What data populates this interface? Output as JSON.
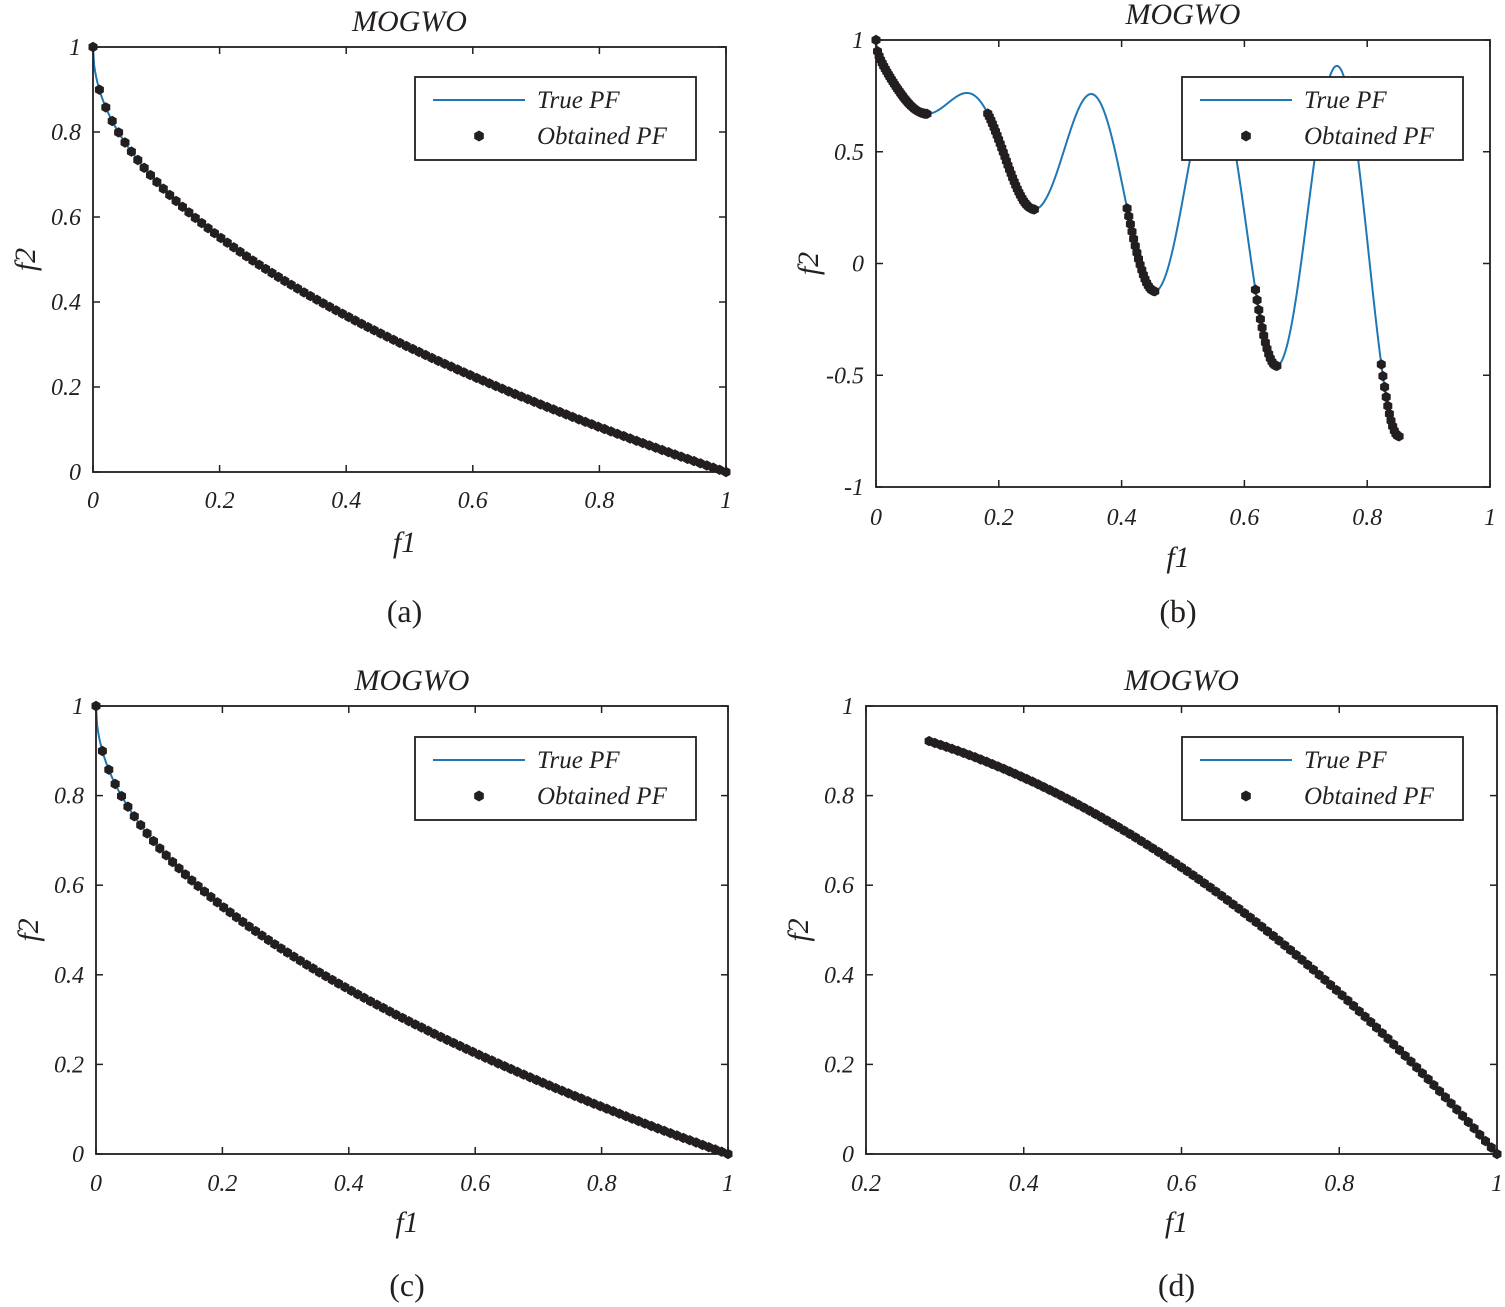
{
  "chart_data": [
    {
      "panel": "a",
      "type": "line+scatter",
      "title": "MOGWO",
      "xlabel": "f1",
      "ylabel": "f2",
      "caption": "(a)",
      "xlim": [
        0,
        1
      ],
      "ylim": [
        0,
        1
      ],
      "xticks": [
        "0",
        "0.2",
        "0.4",
        "0.6",
        "0.8",
        "1"
      ],
      "yticks": [
        "0",
        "0.2",
        "0.4",
        "0.6",
        "0.8",
        "1"
      ],
      "legend": {
        "position": "top-right",
        "entries": [
          "True PF",
          "Obtained PF"
        ]
      },
      "series": [
        {
          "name": "True PF",
          "style": "line",
          "color": "#1f77b4",
          "curve": "f2 = 1 - sqrt(f1)",
          "x_range": [
            0,
            1
          ]
        },
        {
          "name": "Obtained PF",
          "style": "markers",
          "color": "#231f20",
          "curve": "f2 = 1 - sqrt(f1)",
          "x_range": [
            0,
            1
          ],
          "count": 100
        }
      ]
    },
    {
      "panel": "b",
      "type": "line+scatter",
      "title": "MOGWO",
      "xlabel": "f1",
      "ylabel": "f2",
      "caption": "(b)",
      "xlim": [
        0,
        1
      ],
      "ylim": [
        -1,
        1
      ],
      "xticks": [
        "0",
        "0.2",
        "0.4",
        "0.6",
        "0.8",
        "1"
      ],
      "yticks": [
        "-1",
        "-0.5",
        "0",
        "0.5",
        "1"
      ],
      "legend": {
        "position": "top-right",
        "entries": [
          "True PF",
          "Obtained PF"
        ]
      },
      "series": [
        {
          "name": "True PF",
          "style": "line",
          "color": "#1f77b4",
          "curve": "f2 = 1 - sqrt(f1) - f1*sin(10*pi*f1)",
          "x_range": [
            0,
            0.852
          ]
        },
        {
          "name": "Obtained PF",
          "style": "markers",
          "color": "#231f20",
          "curve": "f2 = 1 - sqrt(f1) - f1*sin(10*pi*f1)",
          "segments": [
            [
              0,
              0.083
            ],
            [
              0.182,
              0.258
            ],
            [
              0.409,
              0.454
            ],
            [
              0.618,
              0.653
            ],
            [
              0.823,
              0.852
            ]
          ],
          "count": 110
        }
      ]
    },
    {
      "panel": "c",
      "type": "line+scatter",
      "title": "MOGWO",
      "xlabel": "f1",
      "ylabel": "f2",
      "caption": "(c)",
      "xlim": [
        0,
        1
      ],
      "ylim": [
        0,
        1
      ],
      "xticks": [
        "0",
        "0.2",
        "0.4",
        "0.6",
        "0.8",
        "1"
      ],
      "yticks": [
        "0",
        "0.2",
        "0.4",
        "0.6",
        "0.8",
        "1"
      ],
      "legend": {
        "position": "top-right",
        "entries": [
          "True PF",
          "Obtained PF"
        ]
      },
      "series": [
        {
          "name": "True PF",
          "style": "line",
          "color": "#1f77b4",
          "curve": "f2 = 1 - sqrt(f1)",
          "x_range": [
            0,
            1
          ]
        },
        {
          "name": "Obtained PF",
          "style": "markers",
          "color": "#231f20",
          "curve": "f2 = 1 - sqrt(f1)",
          "x_range": [
            0,
            1
          ],
          "count": 100
        }
      ]
    },
    {
      "panel": "d",
      "type": "line+scatter",
      "title": "MOGWO",
      "xlabel": "f1",
      "ylabel": "f2",
      "caption": "(d)",
      "xlim": [
        0.2,
        1
      ],
      "ylim": [
        0,
        1
      ],
      "xticks": [
        "0.2",
        "0.4",
        "0.6",
        "0.8",
        "1"
      ],
      "yticks": [
        "0",
        "0.2",
        "0.4",
        "0.6",
        "0.8",
        "1"
      ],
      "legend": {
        "position": "top-right",
        "entries": [
          "True PF",
          "Obtained PF"
        ]
      },
      "series": [
        {
          "name": "True PF",
          "style": "line",
          "color": "#1f77b4",
          "curve": "f2 = 1 - f1^2",
          "x_range": [
            0.28,
            1
          ]
        },
        {
          "name": "Obtained PF",
          "style": "markers",
          "color": "#231f20",
          "curve": "f2 = 1 - f1^2",
          "x_range": [
            0.28,
            1
          ],
          "count": 100
        }
      ]
    }
  ]
}
